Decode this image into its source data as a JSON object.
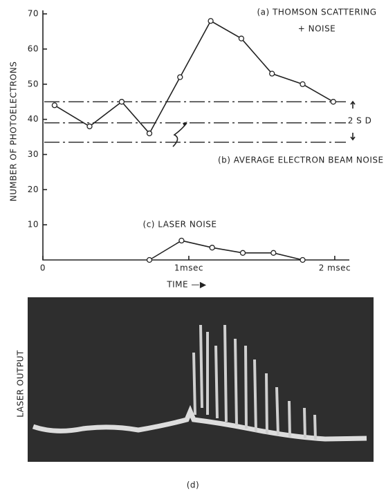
{
  "chart_data": {
    "type": "line",
    "ylabel": "NUMBER OF PHOTOELECTRONS",
    "xlabel": "TIME —▶",
    "xlim": [
      0,
      2.1
    ],
    "ylim": [
      0,
      71
    ],
    "xticks": [
      0,
      {
        "value": 1,
        "label": "1msec"
      },
      {
        "value": 2,
        "label": "2 msec"
      }
    ],
    "yticks": [
      10,
      20,
      30,
      40,
      50,
      60,
      70
    ],
    "series": [
      {
        "name": "(a) THOMSON SCATTERING",
        "color": "#222",
        "x": [
          0.08,
          0.32,
          0.54,
          0.73,
          0.94,
          1.15,
          1.36,
          1.57,
          1.78,
          1.99
        ],
        "values": [
          44,
          38,
          45,
          36,
          52,
          68,
          63,
          53,
          50,
          45
        ]
      },
      {
        "name": "(c) LASER NOISE",
        "color": "#222",
        "x": [
          0.73,
          0.95,
          1.16,
          1.37,
          1.58,
          1.78
        ],
        "values": [
          0,
          5.5,
          3.5,
          2,
          2,
          0
        ]
      }
    ],
    "reference_lines": [
      45,
      39,
      33.5
    ],
    "annotations": [
      "+ NOISE",
      "(b) AVERAGE ELECTRON BEAM NOISE",
      "2 S D"
    ],
    "photo": {
      "ylabel": "LASER OUTPUT",
      "caption": "(d)"
    }
  }
}
